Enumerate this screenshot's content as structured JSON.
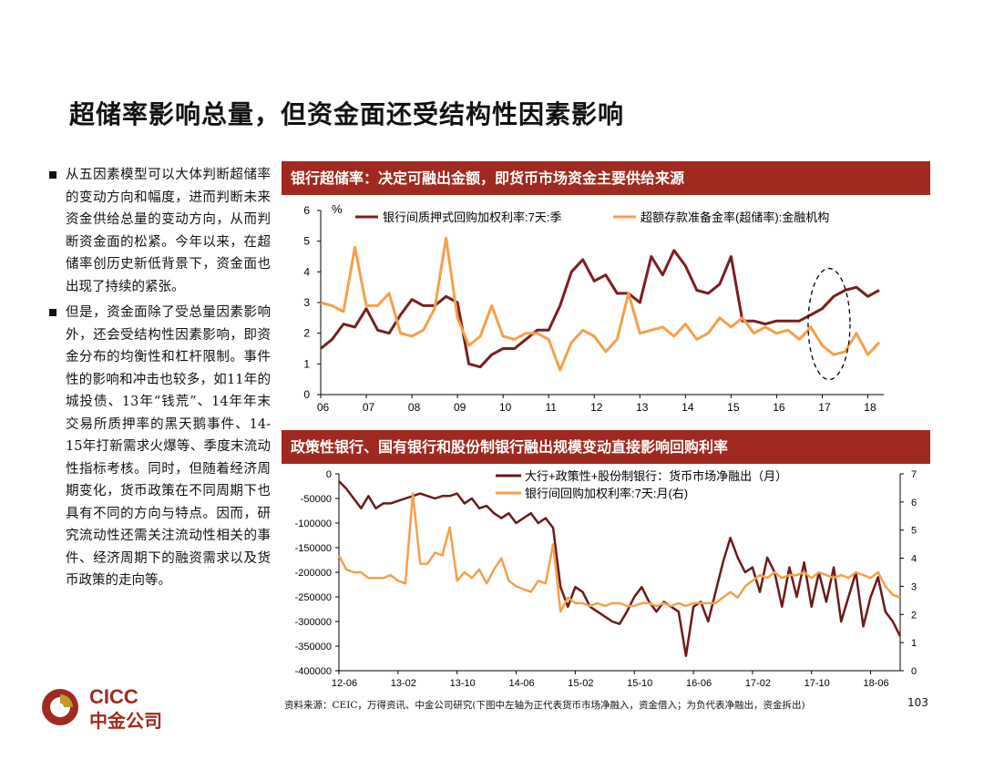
{
  "page": {
    "title": "超储率影响总量，但资金面还受结构性因素影响",
    "page_number": "103",
    "source": "资料来源：CEIC，万得资讯、中金公司研究(下图中左轴为正代表货币市场净融入，资金借入；为负代表净融出，资金拆出)",
    "logo": {
      "en": "CICC",
      "cn": "中金公司",
      "colors": {
        "brand_red": "#a02a1f",
        "brand_gold": "#c8962e"
      }
    }
  },
  "bullets": [
    "从五因素模型可以大体判断超储率的变动方向和幅度，进而判断未来资金供给总量的变动方向，从而判断资金面的松紧。今年以来，在超储率创历史新低背景下，资金面也出现了持续的紧张。",
    "但是，资金面除了受总量因素影响外，还会受结构性因素影响，即资金分布的均衡性和杠杆限制。事件性的影响和冲击也较多，如11年的城投债、13年“钱荒”、14年年末交易所质押率的黑天鹅事件、14-15年打新需求火爆等、季度末流动性指标考核。同时，但随着经济周期变化，货币政策在不同周期下也具有不同的方向与特点。因而，研究流动性还需关注流动性相关的事件、经济周期下的融资需求以及货币政策的走向等。"
  ],
  "panels": {
    "top_header": "银行超储率：决定可融出金额，即货币市场资金主要供给来源",
    "bottom_header": "政策性银行、国有银行和股份制银行融出规模变动直接影响回购利率"
  },
  "chart_data": [
    {
      "type": "line",
      "ylabel": "%",
      "ylim": [
        0,
        6
      ],
      "y_ticks": [
        "0",
        "1",
        "2",
        "3",
        "4",
        "5",
        "6"
      ],
      "x_ticks": [
        "06",
        "07",
        "08",
        "09",
        "10",
        "11",
        "12",
        "13",
        "14",
        "15",
        "16",
        "17",
        "18"
      ],
      "x_range": [
        2006.0,
        2018.35
      ],
      "annotation": "dashed ellipse around 2017–2018",
      "series": [
        {
          "name": "银行间质押式回购加权利率:7天:季",
          "color": "#7b1e1e",
          "points": [
            [
              2006.0,
              1.5
            ],
            [
              2006.25,
              1.8
            ],
            [
              2006.5,
              2.3
            ],
            [
              2006.75,
              2.2
            ],
            [
              2007.0,
              2.8
            ],
            [
              2007.25,
              2.1
            ],
            [
              2007.5,
              2.0
            ],
            [
              2007.75,
              2.6
            ],
            [
              2008.0,
              3.1
            ],
            [
              2008.25,
              2.9
            ],
            [
              2008.5,
              2.9
            ],
            [
              2008.75,
              3.2
            ],
            [
              2009.0,
              3.0
            ],
            [
              2009.25,
              1.0
            ],
            [
              2009.5,
              0.9
            ],
            [
              2009.75,
              1.3
            ],
            [
              2010.0,
              1.5
            ],
            [
              2010.25,
              1.5
            ],
            [
              2010.5,
              1.8
            ],
            [
              2010.75,
              2.1
            ],
            [
              2011.0,
              2.1
            ],
            [
              2011.25,
              2.9
            ],
            [
              2011.5,
              4.0
            ],
            [
              2011.75,
              4.4
            ],
            [
              2012.0,
              3.7
            ],
            [
              2012.25,
              3.9
            ],
            [
              2012.5,
              3.3
            ],
            [
              2012.75,
              3.3
            ],
            [
              2013.0,
              3.0
            ],
            [
              2013.25,
              4.5
            ],
            [
              2013.5,
              3.9
            ],
            [
              2013.75,
              4.7
            ],
            [
              2014.0,
              4.2
            ],
            [
              2014.25,
              3.4
            ],
            [
              2014.5,
              3.3
            ],
            [
              2014.75,
              3.6
            ],
            [
              2015.0,
              4.5
            ],
            [
              2015.25,
              2.4
            ],
            [
              2015.5,
              2.4
            ],
            [
              2015.75,
              2.3
            ],
            [
              2016.0,
              2.4
            ],
            [
              2016.25,
              2.4
            ],
            [
              2016.5,
              2.4
            ],
            [
              2016.75,
              2.6
            ],
            [
              2017.0,
              2.8
            ],
            [
              2017.25,
              3.2
            ],
            [
              2017.5,
              3.4
            ],
            [
              2017.75,
              3.5
            ],
            [
              2018.0,
              3.2
            ],
            [
              2018.25,
              3.4
            ]
          ]
        },
        {
          "name": "超额存款准备金率(超储率):金融机构",
          "color": "#f5a04a",
          "points": [
            [
              2006.0,
              3.0
            ],
            [
              2006.25,
              2.9
            ],
            [
              2006.5,
              2.7
            ],
            [
              2006.75,
              4.8
            ],
            [
              2007.0,
              2.9
            ],
            [
              2007.25,
              2.9
            ],
            [
              2007.5,
              3.3
            ],
            [
              2007.75,
              2.0
            ],
            [
              2008.0,
              1.9
            ],
            [
              2008.25,
              2.1
            ],
            [
              2008.5,
              2.8
            ],
            [
              2008.75,
              5.1
            ],
            [
              2009.0,
              2.5
            ],
            [
              2009.25,
              1.6
            ],
            [
              2009.5,
              1.9
            ],
            [
              2009.75,
              2.9
            ],
            [
              2010.0,
              1.9
            ],
            [
              2010.25,
              1.8
            ],
            [
              2010.5,
              2.0
            ],
            [
              2010.75,
              2.0
            ],
            [
              2011.0,
              1.8
            ],
            [
              2011.25,
              0.8
            ],
            [
              2011.5,
              1.7
            ],
            [
              2011.75,
              2.1
            ],
            [
              2012.0,
              1.9
            ],
            [
              2012.25,
              1.4
            ],
            [
              2012.5,
              1.8
            ],
            [
              2012.75,
              3.3
            ],
            [
              2013.0,
              2.0
            ],
            [
              2013.25,
              2.1
            ],
            [
              2013.5,
              2.2
            ],
            [
              2013.75,
              1.9
            ],
            [
              2014.0,
              2.3
            ],
            [
              2014.25,
              1.8
            ],
            [
              2014.5,
              2.0
            ],
            [
              2014.75,
              2.5
            ],
            [
              2015.0,
              2.2
            ],
            [
              2015.25,
              2.5
            ],
            [
              2015.5,
              2.0
            ],
            [
              2015.75,
              2.2
            ],
            [
              2016.0,
              2.0
            ],
            [
              2016.25,
              2.1
            ],
            [
              2016.5,
              1.8
            ],
            [
              2016.75,
              2.2
            ],
            [
              2017.0,
              1.6
            ],
            [
              2017.25,
              1.3
            ],
            [
              2017.5,
              1.4
            ],
            [
              2017.75,
              2.0
            ],
            [
              2018.0,
              1.3
            ],
            [
              2018.25,
              1.7
            ]
          ]
        }
      ]
    },
    {
      "type": "line",
      "ylim_left": [
        -400000,
        0
      ],
      "ylim_right": [
        0,
        7
      ],
      "y_ticks_left": [
        "0",
        "-50000",
        "-100000",
        "-150000",
        "-200000",
        "-250000",
        "-300000",
        "-350000",
        "-400000"
      ],
      "y_ticks_right": [
        "7",
        "6",
        "5",
        "4",
        "3",
        "2",
        "1",
        "0"
      ],
      "x_ticks": [
        "12-06",
        "13-02",
        "13-10",
        "14-06",
        "15-02",
        "15-10",
        "16-06",
        "17-02",
        "17-10",
        "18-06"
      ],
      "x_range": [
        0,
        76
      ],
      "series": [
        {
          "name": "大行+政策性+股份制银行：货币市场净融出（月）",
          "axis": "left",
          "color": "#6b1a1a",
          "points": [
            [
              0,
              -15000
            ],
            [
              1,
              -30000
            ],
            [
              2,
              -50000
            ],
            [
              3,
              -70000
            ],
            [
              4,
              -45000
            ],
            [
              5,
              -70000
            ],
            [
              6,
              -60000
            ],
            [
              7,
              -60000
            ],
            [
              8,
              -55000
            ],
            [
              9,
              -50000
            ],
            [
              10,
              -45000
            ],
            [
              11,
              -40000
            ],
            [
              12,
              -45000
            ],
            [
              13,
              -50000
            ],
            [
              14,
              -45000
            ],
            [
              15,
              -45000
            ],
            [
              16,
              -40000
            ],
            [
              17,
              -60000
            ],
            [
              18,
              -50000
            ],
            [
              19,
              -70000
            ],
            [
              20,
              -65000
            ],
            [
              21,
              -80000
            ],
            [
              22,
              -90000
            ],
            [
              23,
              -80000
            ],
            [
              24,
              -100000
            ],
            [
              25,
              -90000
            ],
            [
              26,
              -80000
            ],
            [
              27,
              -100000
            ],
            [
              28,
              -90000
            ],
            [
              29,
              -110000
            ],
            [
              30,
              -230000
            ],
            [
              31,
              -270000
            ],
            [
              32,
              -230000
            ],
            [
              33,
              -240000
            ],
            [
              34,
              -270000
            ],
            [
              35,
              -280000
            ],
            [
              36,
              -290000
            ],
            [
              37,
              -300000
            ],
            [
              38,
              -305000
            ],
            [
              39,
              -280000
            ],
            [
              40,
              -250000
            ],
            [
              41,
              -230000
            ],
            [
              42,
              -260000
            ],
            [
              43,
              -280000
            ],
            [
              44,
              -260000
            ],
            [
              45,
              -270000
            ],
            [
              46,
              -280000
            ],
            [
              47,
              -370000
            ],
            [
              48,
              -270000
            ],
            [
              49,
              -260000
            ],
            [
              50,
              -300000
            ],
            [
              51,
              -240000
            ],
            [
              52,
              -180000
            ],
            [
              53,
              -130000
            ],
            [
              54,
              -170000
            ],
            [
              55,
              -200000
            ],
            [
              56,
              -190000
            ],
            [
              57,
              -240000
            ],
            [
              58,
              -170000
            ],
            [
              59,
              -200000
            ],
            [
              60,
              -270000
            ],
            [
              61,
              -190000
            ],
            [
              62,
              -250000
            ],
            [
              63,
              -180000
            ],
            [
              64,
              -270000
            ],
            [
              65,
              -200000
            ],
            [
              66,
              -260000
            ],
            [
              67,
              -190000
            ],
            [
              68,
              -300000
            ],
            [
              69,
              -250000
            ],
            [
              70,
              -200000
            ],
            [
              71,
              -310000
            ],
            [
              72,
              -250000
            ],
            [
              73,
              -210000
            ],
            [
              74,
              -280000
            ],
            [
              75,
              -300000
            ],
            [
              76,
              -330000
            ]
          ]
        },
        {
          "name": "银行间回购加权利率:7天:月(右)",
          "axis": "right",
          "color": "#f5a04a",
          "points": [
            [
              0,
              4.1
            ],
            [
              1,
              3.6
            ],
            [
              2,
              3.5
            ],
            [
              3,
              3.5
            ],
            [
              4,
              3.3
            ],
            [
              5,
              3.3
            ],
            [
              6,
              3.3
            ],
            [
              7,
              3.4
            ],
            [
              8,
              3.2
            ],
            [
              9,
              3.1
            ],
            [
              10,
              6.3
            ],
            [
              11,
              3.8
            ],
            [
              12,
              3.8
            ],
            [
              13,
              4.2
            ],
            [
              14,
              4.1
            ],
            [
              15,
              5.1
            ],
            [
              16,
              3.2
            ],
            [
              17,
              3.5
            ],
            [
              18,
              3.3
            ],
            [
              19,
              3.6
            ],
            [
              20,
              3.1
            ],
            [
              21,
              3.6
            ],
            [
              22,
              4.0
            ],
            [
              23,
              3.2
            ],
            [
              24,
              3.0
            ],
            [
              25,
              2.9
            ],
            [
              26,
              2.8
            ],
            [
              27,
              3.2
            ],
            [
              28,
              3.1
            ],
            [
              29,
              4.5
            ],
            [
              30,
              2.1
            ],
            [
              31,
              2.6
            ],
            [
              32,
              2.4
            ],
            [
              33,
              2.4
            ],
            [
              34,
              2.3
            ],
            [
              35,
              2.4
            ],
            [
              36,
              2.3
            ],
            [
              37,
              2.4
            ],
            [
              38,
              2.4
            ],
            [
              39,
              2.3
            ],
            [
              40,
              2.3
            ],
            [
              41,
              2.4
            ],
            [
              42,
              2.4
            ],
            [
              43,
              2.3
            ],
            [
              44,
              2.4
            ],
            [
              45,
              2.3
            ],
            [
              46,
              2.4
            ],
            [
              47,
              2.3
            ],
            [
              48,
              2.4
            ],
            [
              49,
              2.4
            ],
            [
              50,
              2.4
            ],
            [
              51,
              2.4
            ],
            [
              52,
              2.6
            ],
            [
              53,
              2.8
            ],
            [
              54,
              2.6
            ],
            [
              55,
              3.0
            ],
            [
              56,
              3.2
            ],
            [
              57,
              3.4
            ],
            [
              58,
              3.3
            ],
            [
              59,
              3.5
            ],
            [
              60,
              3.3
            ],
            [
              61,
              3.4
            ],
            [
              62,
              3.4
            ],
            [
              63,
              3.5
            ],
            [
              64,
              3.3
            ],
            [
              65,
              3.5
            ],
            [
              66,
              3.4
            ],
            [
              67,
              3.3
            ],
            [
              68,
              3.4
            ],
            [
              69,
              3.3
            ],
            [
              70,
              3.5
            ],
            [
              71,
              3.4
            ],
            [
              72,
              3.3
            ],
            [
              73,
              3.5
            ],
            [
              74,
              3.0
            ],
            [
              75,
              2.7
            ],
            [
              76,
              2.6
            ]
          ]
        }
      ]
    }
  ]
}
